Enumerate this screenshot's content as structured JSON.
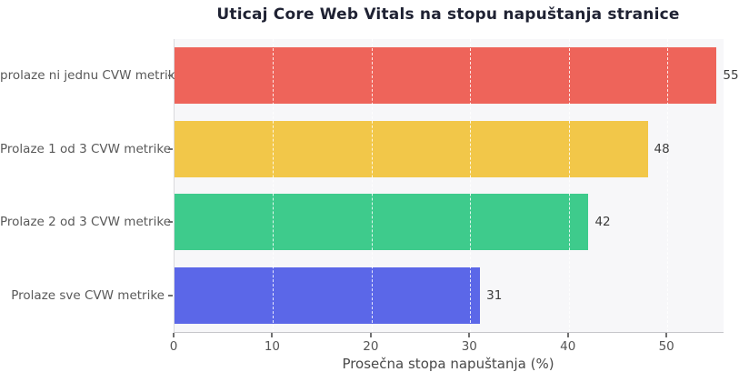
{
  "chart_data": {
    "type": "bar",
    "orientation": "horizontal",
    "title": "Uticaj Core Web Vitals na stopu napuštanja stranice",
    "xlabel": "Prosečna stopa napuštanja (%)",
    "ylabel": "",
    "categories": [
      "prolaze ni jednu CVW metriku",
      "Prolaze 1 od 3 CVW metrike",
      "Prolaze 2 od 3 CVW metrike",
      "Prolaze sve CVW metrike"
    ],
    "values": [
      55,
      48,
      42,
      31
    ],
    "bar_labels": [
      "55",
      "48",
      "42",
      "31"
    ],
    "bar_colors": [
      "#ee645a",
      "#f2c749",
      "#3ecb8c",
      "#5b67e8"
    ],
    "x_ticks": [
      "0",
      "10",
      "20",
      "30",
      "40",
      "50"
    ],
    "x_tick_values": [
      0,
      10,
      20,
      30,
      40,
      50
    ],
    "xlim": [
      0,
      55.7
    ],
    "grid": "vertical-dashed",
    "legend": "none",
    "colors": {
      "plot_background": "#f7f7f9",
      "figure_background": "#ffffff",
      "title_color": "#1f2233",
      "axis_label_color": "#4a4a4a",
      "tick_label_color": "#555555",
      "category_label_color": "#595959",
      "gridline_color": "rgba(255,255,255,0.85)"
    }
  }
}
